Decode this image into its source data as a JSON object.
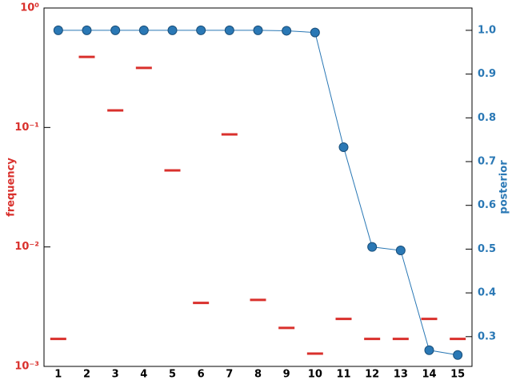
{
  "chart_data": {
    "type": "line",
    "categories": [
      "1",
      "2",
      "3",
      "4",
      "5",
      "6",
      "7",
      "8",
      "9",
      "10",
      "11",
      "12",
      "13",
      "14",
      "15"
    ],
    "ylabel": "frequency",
    "y2label": "posterior",
    "ylog": true,
    "ylim": [
      0.001,
      1
    ],
    "yticks": [
      {
        "value": 1,
        "label": "10⁰"
      },
      {
        "value": 0.1,
        "label": "10⁻¹"
      },
      {
        "value": 0.01,
        "label": "10⁻²"
      },
      {
        "value": 0.001,
        "label": "10⁻³"
      }
    ],
    "ycolor": "#d9302c",
    "y2lim": [
      0.232,
      1.051
    ],
    "y2ticks": [
      {
        "value": 1,
        "label": "1.0"
      },
      0.9,
      0.8,
      0.7,
      0.6,
      0.5,
      0.4,
      0.3
    ],
    "y2color": "#2a78b5",
    "series": [
      {
        "color": "#d9302c",
        "marker": "dash",
        "values": [
          0.0017,
          0.39,
          0.139,
          0.315,
          0.0437,
          0.0034,
          0.0875,
          0.0036,
          0.0021,
          0.00128,
          0.0025,
          0.0017,
          0.0017,
          0.0025,
          0.0017
        ]
      },
      {
        "color": "#2a78b5",
        "marker": "circle",
        "axis": "y2",
        "values": [
          1.0,
          1.0,
          1.0,
          1.0,
          1.0,
          1.0,
          1.0,
          1.0,
          0.999,
          0.995,
          0.733,
          0.505,
          0.497,
          0.269,
          0.258
        ]
      }
    ]
  }
}
